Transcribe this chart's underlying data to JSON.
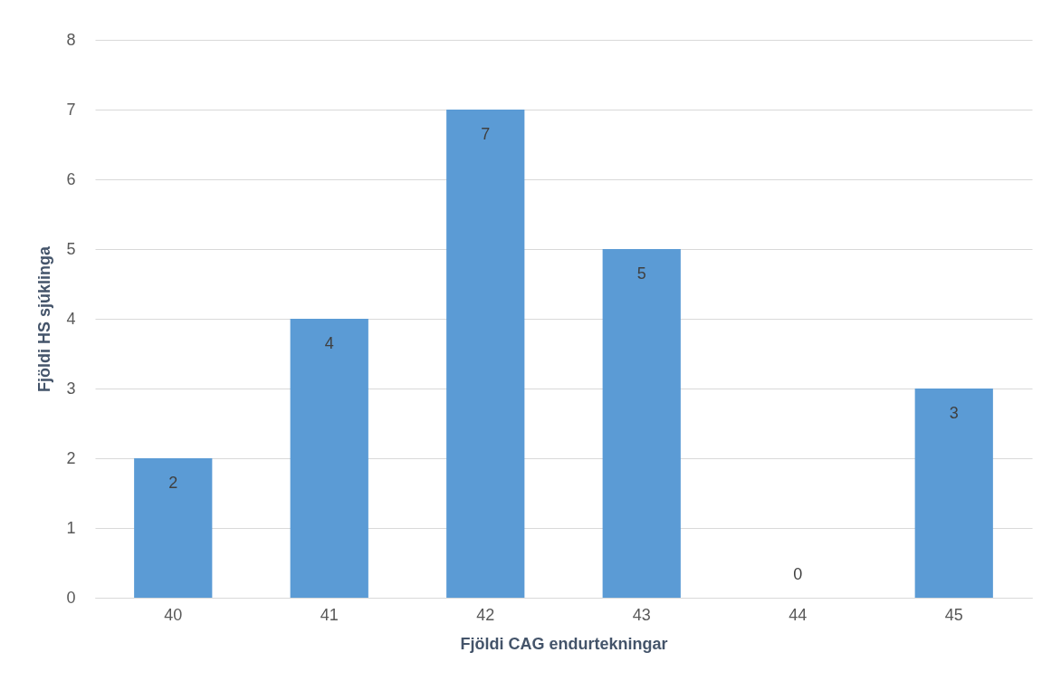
{
  "chart_data": {
    "type": "bar",
    "xlabel": "Fjöldi CAG endurtekningar",
    "ylabel": "Fjöldi HS sjúklinga",
    "categories": [
      "40",
      "41",
      "42",
      "43",
      "44",
      "45"
    ],
    "values": [
      2,
      4,
      7,
      5,
      0,
      3
    ],
    "color": "#5b9bd5",
    "ylim": [
      0,
      8
    ],
    "yticks": [
      0,
      1,
      2,
      3,
      4,
      5,
      6,
      7,
      8
    ],
    "grid": "y",
    "data_labels": true
  }
}
